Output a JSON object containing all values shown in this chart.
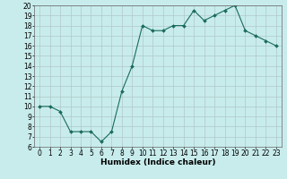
{
  "x": [
    0,
    1,
    2,
    3,
    4,
    5,
    6,
    7,
    8,
    9,
    10,
    11,
    12,
    13,
    14,
    15,
    16,
    17,
    18,
    19,
    20,
    21,
    22,
    23
  ],
  "y": [
    10,
    10,
    9.5,
    7.5,
    7.5,
    7.5,
    6.5,
    7.5,
    11.5,
    14,
    18,
    17.5,
    17.5,
    18,
    18,
    19.5,
    18.5,
    19,
    19.5,
    20,
    17.5,
    17,
    16.5,
    16
  ],
  "line_color": "#1a6b5a",
  "marker": "D",
  "marker_size": 2.0,
  "bg_color": "#c8ecec",
  "grid_color": "#b0c8c8",
  "xlabel": "Humidex (Indice chaleur)",
  "xlabel_fontsize": 6.5,
  "tick_fontsize": 5.5,
  "xlim": [
    -0.5,
    23.5
  ],
  "ylim": [
    6,
    20
  ],
  "yticks": [
    6,
    7,
    8,
    9,
    10,
    11,
    12,
    13,
    14,
    15,
    16,
    17,
    18,
    19,
    20
  ],
  "xticks": [
    0,
    1,
    2,
    3,
    4,
    5,
    6,
    7,
    8,
    9,
    10,
    11,
    12,
    13,
    14,
    15,
    16,
    17,
    18,
    19,
    20,
    21,
    22,
    23
  ]
}
